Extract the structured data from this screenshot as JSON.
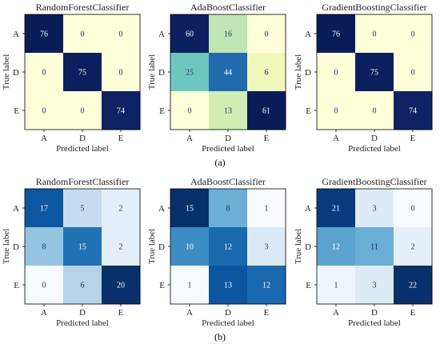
{
  "figure": {
    "panel_labels": [
      "(a)",
      "(b)"
    ]
  },
  "chart_data": [
    {
      "type": "heatmap",
      "panel": "(a)",
      "title": "RandomForestClassifier",
      "xlabel": "Predicted label",
      "ylabel": "True label",
      "x": [
        "A",
        "D",
        "E"
      ],
      "y": [
        "A",
        "D",
        "E"
      ],
      "values": [
        [
          76,
          0,
          0
        ],
        [
          0,
          75,
          0
        ],
        [
          0,
          0,
          74
        ]
      ],
      "colormap": "YlGnBu"
    },
    {
      "type": "heatmap",
      "panel": "(a)",
      "title": "AdaBoostClassifier",
      "xlabel": "Predicted label",
      "ylabel": "True label",
      "x": [
        "A",
        "D",
        "E"
      ],
      "y": [
        "A",
        "D",
        "E"
      ],
      "values": [
        [
          60,
          16,
          0
        ],
        [
          25,
          44,
          6
        ],
        [
          0,
          13,
          61
        ]
      ],
      "colormap": "YlGnBu"
    },
    {
      "type": "heatmap",
      "panel": "(a)",
      "title": "GradientBoostingClassifier",
      "xlabel": "Predicted label",
      "ylabel": "True label",
      "x": [
        "A",
        "D",
        "E"
      ],
      "y": [
        "A",
        "D",
        "E"
      ],
      "values": [
        [
          76,
          0,
          0
        ],
        [
          0,
          75,
          0
        ],
        [
          0,
          0,
          74
        ]
      ],
      "colormap": "YlGnBu"
    },
    {
      "type": "heatmap",
      "panel": "(b)",
      "title": "RandomForestClassifier",
      "xlabel": "Predicted label",
      "ylabel": "True label",
      "x": [
        "A",
        "D",
        "E"
      ],
      "y": [
        "A",
        "D",
        "E"
      ],
      "values": [
        [
          17,
          5,
          2
        ],
        [
          8,
          15,
          2
        ],
        [
          0,
          6,
          20
        ]
      ],
      "colormap": "Blues"
    },
    {
      "type": "heatmap",
      "panel": "(b)",
      "title": "AdaBoostClassifier",
      "xlabel": "Predicted label",
      "ylabel": "True label",
      "x": [
        "A",
        "D",
        "E"
      ],
      "y": [
        "A",
        "D",
        "E"
      ],
      "values": [
        [
          15,
          8,
          1
        ],
        [
          10,
          12,
          3
        ],
        [
          1,
          13,
          12
        ]
      ],
      "colormap": "Blues"
    },
    {
      "type": "heatmap",
      "panel": "(b)",
      "title": "GradientBoostingClassifier",
      "xlabel": "Predicted label",
      "ylabel": "True label",
      "x": [
        "A",
        "D",
        "E"
      ],
      "y": [
        "A",
        "D",
        "E"
      ],
      "values": [
        [
          21,
          3,
          0
        ],
        [
          12,
          11,
          2
        ],
        [
          1,
          3,
          22
        ]
      ],
      "colormap": "Blues"
    }
  ]
}
